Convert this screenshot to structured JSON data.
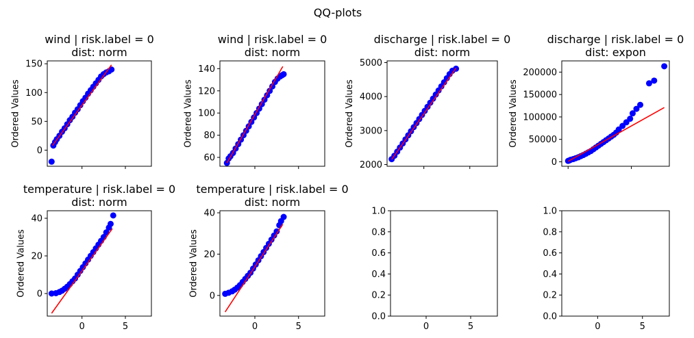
{
  "figure": {
    "suptitle": "QQ-plots"
  },
  "colors": {
    "points": "#0000ff",
    "fit_line": "#ff0000"
  },
  "chart_data": [
    {
      "type": "scatter",
      "title_line1": "wind | risk.label = 0",
      "title_line2": "dist: norm",
      "xlabel": "",
      "ylabel": "Ordered Values",
      "xlim": [
        -4,
        8
      ],
      "ylim": [
        -28,
        155
      ],
      "yticks": [
        0,
        50,
        100,
        150
      ],
      "yticks_labels": [
        "0",
        "50",
        "100",
        "150"
      ],
      "xticks": [
        0,
        5
      ],
      "xticks_labels": [
        "",
        ""
      ],
      "points": [
        [
          -3.5,
          -20
        ],
        [
          -3.3,
          8
        ],
        [
          -3.1,
          14
        ],
        [
          -2.9,
          19
        ],
        [
          -2.6,
          25
        ],
        [
          -2.3,
          32
        ],
        [
          -2.0,
          38
        ],
        [
          -1.7,
          45
        ],
        [
          -1.4,
          52
        ],
        [
          -1.1,
          58
        ],
        [
          -0.8,
          65
        ],
        [
          -0.5,
          71
        ],
        [
          -0.2,
          78
        ],
        [
          0.1,
          85
        ],
        [
          0.4,
          91
        ],
        [
          0.7,
          98
        ],
        [
          1.0,
          104
        ],
        [
          1.3,
          110
        ],
        [
          1.6,
          116
        ],
        [
          1.9,
          122
        ],
        [
          2.2,
          128
        ],
        [
          2.5,
          132
        ],
        [
          2.8,
          135
        ],
        [
          3.1,
          137
        ],
        [
          3.4,
          140
        ]
      ],
      "fit_line": [
        [
          -3.4,
          8
        ],
        [
          3.4,
          148
        ]
      ]
    },
    {
      "type": "scatter",
      "title_line1": "wind | risk.label = 0",
      "title_line2": "dist: norm",
      "xlabel": "",
      "ylabel": "Ordered Values",
      "xlim": [
        -4,
        8
      ],
      "ylim": [
        52,
        147
      ],
      "yticks": [
        60,
        80,
        100,
        120,
        140
      ],
      "yticks_labels": [
        "60",
        "80",
        "100",
        "120",
        "140"
      ],
      "xticks": [
        0,
        5
      ],
      "xticks_labels": [
        "",
        ""
      ],
      "points": [
        [
          -3.2,
          55
        ],
        [
          -3.0,
          59
        ],
        [
          -2.8,
          61
        ],
        [
          -2.5,
          64
        ],
        [
          -2.2,
          68
        ],
        [
          -1.9,
          72
        ],
        [
          -1.6,
          76
        ],
        [
          -1.3,
          80
        ],
        [
          -1.0,
          84
        ],
        [
          -0.7,
          88
        ],
        [
          -0.4,
          92
        ],
        [
          -0.1,
          96
        ],
        [
          0.2,
          100
        ],
        [
          0.5,
          104
        ],
        [
          0.8,
          108
        ],
        [
          1.1,
          112
        ],
        [
          1.4,
          116
        ],
        [
          1.7,
          120
        ],
        [
          2.0,
          124
        ],
        [
          2.3,
          128
        ],
        [
          2.6,
          131
        ],
        [
          2.9,
          133
        ],
        [
          3.1,
          134
        ],
        [
          3.3,
          135
        ]
      ],
      "fit_line": [
        [
          -3.2,
          55
        ],
        [
          3.2,
          142
        ]
      ]
    },
    {
      "type": "scatter",
      "title_line1": "discharge | risk.label = 0",
      "title_line2": "dist: norm",
      "xlabel": "",
      "ylabel": "Ordered Values",
      "xlim": [
        -4,
        8
      ],
      "ylim": [
        1950,
        5050
      ],
      "yticks": [
        2000,
        3000,
        4000,
        5000
      ],
      "yticks_labels": [
        "2000",
        "3000",
        "4000",
        "5000"
      ],
      "xticks": [
        0,
        5
      ],
      "xticks_labels": [
        "",
        ""
      ],
      "points": [
        [
          -3.5,
          2160
        ],
        [
          -3.2,
          2260
        ],
        [
          -2.9,
          2380
        ],
        [
          -2.6,
          2500
        ],
        [
          -2.3,
          2620
        ],
        [
          -2.0,
          2740
        ],
        [
          -1.7,
          2860
        ],
        [
          -1.4,
          2980
        ],
        [
          -1.1,
          3100
        ],
        [
          -0.8,
          3220
        ],
        [
          -0.5,
          3340
        ],
        [
          -0.2,
          3460
        ],
        [
          0.1,
          3580
        ],
        [
          0.4,
          3700
        ],
        [
          0.7,
          3820
        ],
        [
          1.0,
          3940
        ],
        [
          1.3,
          4060
        ],
        [
          1.6,
          4180
        ],
        [
          1.9,
          4300
        ],
        [
          2.2,
          4420
        ],
        [
          2.5,
          4540
        ],
        [
          2.8,
          4660
        ],
        [
          3.1,
          4760
        ],
        [
          3.5,
          4820
        ]
      ],
      "fit_line": [
        [
          -3.5,
          2150
        ],
        [
          3.5,
          4840
        ]
      ]
    },
    {
      "type": "scatter",
      "title_line1": "discharge | risk.label = 0",
      "title_line2": "dist: expon",
      "xlabel": "",
      "ylabel": "Ordered Values",
      "xlim": [
        -0.5,
        8
      ],
      "ylim": [
        -10000,
        225000
      ],
      "yticks": [
        0,
        50000,
        100000,
        150000,
        200000
      ],
      "yticks_labels": [
        "0",
        "50000",
        "100000",
        "150000",
        "200000"
      ],
      "xticks": [
        0,
        5
      ],
      "xticks_labels": [
        "",
        ""
      ],
      "points": [
        [
          0.0,
          2000
        ],
        [
          0.1,
          3000
        ],
        [
          0.2,
          4500
        ],
        [
          0.4,
          6000
        ],
        [
          0.6,
          8000
        ],
        [
          0.8,
          10000
        ],
        [
          1.0,
          12500
        ],
        [
          1.2,
          15000
        ],
        [
          1.4,
          18000
        ],
        [
          1.6,
          21000
        ],
        [
          1.8,
          24000
        ],
        [
          2.0,
          28000
        ],
        [
          2.2,
          32000
        ],
        [
          2.4,
          36000
        ],
        [
          2.6,
          40000
        ],
        [
          2.8,
          44000
        ],
        [
          3.0,
          48000
        ],
        [
          3.2,
          52000
        ],
        [
          3.4,
          56000
        ],
        [
          3.6,
          60000
        ],
        [
          3.8,
          65000
        ],
        [
          4.0,
          72000
        ],
        [
          4.3,
          80000
        ],
        [
          4.6,
          88000
        ],
        [
          4.9,
          96000
        ],
        [
          5.1,
          108000
        ],
        [
          5.4,
          118000
        ],
        [
          5.7,
          127000
        ],
        [
          6.4,
          175000
        ],
        [
          6.8,
          181000
        ],
        [
          7.6,
          213000
        ]
      ],
      "fit_line": [
        [
          0.0,
          1000
        ],
        [
          7.6,
          121000
        ]
      ]
    },
    {
      "type": "scatter",
      "title_line1": "temperature | risk.label = 0",
      "title_line2": "dist: norm",
      "xlabel": "",
      "ylabel": "Ordered Values",
      "xlim": [
        -4,
        8
      ],
      "ylim": [
        -12,
        44
      ],
      "yticks": [
        0,
        20,
        40
      ],
      "yticks_labels": [
        "0",
        "20",
        "40"
      ],
      "xticks": [
        0,
        5
      ],
      "xticks_labels": [
        "0",
        "5"
      ],
      "points": [
        [
          -3.5,
          0
        ],
        [
          -3.0,
          0.2
        ],
        [
          -2.6,
          0.8
        ],
        [
          -2.3,
          1.5
        ],
        [
          -2.0,
          2.5
        ],
        [
          -1.7,
          3.6
        ],
        [
          -1.4,
          5.0
        ],
        [
          -1.1,
          6.5
        ],
        [
          -0.8,
          8.0
        ],
        [
          -0.5,
          10
        ],
        [
          -0.2,
          12
        ],
        [
          0.1,
          14
        ],
        [
          0.4,
          16
        ],
        [
          0.7,
          18
        ],
        [
          1.0,
          20
        ],
        [
          1.3,
          22
        ],
        [
          1.6,
          24
        ],
        [
          1.9,
          26
        ],
        [
          2.2,
          28
        ],
        [
          2.5,
          30
        ],
        [
          2.8,
          32.5
        ],
        [
          3.1,
          35
        ],
        [
          3.3,
          37
        ],
        [
          3.6,
          41.5
        ]
      ],
      "fit_line": [
        [
          -3.5,
          -10.5
        ],
        [
          3.5,
          34.5
        ]
      ]
    },
    {
      "type": "scatter",
      "title_line1": "temperature | risk.label = 0",
      "title_line2": "dist: norm",
      "xlabel": "",
      "ylabel": "Ordered Values",
      "xlim": [
        -4,
        8
      ],
      "ylim": [
        -10,
        41
      ],
      "yticks": [
        0,
        20,
        40
      ],
      "yticks_labels": [
        "0",
        "20",
        "40"
      ],
      "xticks": [
        0,
        5
      ],
      "xticks_labels": [
        "0",
        "5"
      ],
      "points": [
        [
          -3.4,
          0.8
        ],
        [
          -3.0,
          1.3
        ],
        [
          -2.6,
          2.0
        ],
        [
          -2.3,
          2.8
        ],
        [
          -2.0,
          3.8
        ],
        [
          -1.7,
          5.0
        ],
        [
          -1.4,
          6.5
        ],
        [
          -1.1,
          8.0
        ],
        [
          -0.8,
          9.5
        ],
        [
          -0.5,
          11
        ],
        [
          -0.2,
          13
        ],
        [
          0.1,
          15
        ],
        [
          0.4,
          17
        ],
        [
          0.7,
          19
        ],
        [
          1.0,
          21
        ],
        [
          1.3,
          23
        ],
        [
          1.6,
          25
        ],
        [
          1.9,
          27
        ],
        [
          2.2,
          29
        ],
        [
          2.5,
          31
        ],
        [
          2.8,
          34
        ],
        [
          3.0,
          36
        ],
        [
          3.3,
          38
        ]
      ],
      "fit_line": [
        [
          -3.4,
          -8
        ],
        [
          3.2,
          34.5
        ]
      ]
    },
    {
      "type": "scatter",
      "title_line1": "",
      "title_line2": "",
      "xlabel": "",
      "ylabel": "",
      "xlim": [
        -4,
        8
      ],
      "ylim": [
        0,
        1
      ],
      "yticks": [
        0,
        0.2,
        0.4,
        0.6,
        0.8,
        1.0
      ],
      "yticks_labels": [
        "0.0",
        "0.2",
        "0.4",
        "0.6",
        "0.8",
        "1.0"
      ],
      "xticks": [
        0,
        5
      ],
      "xticks_labels": [
        "0",
        "5"
      ],
      "points": [],
      "fit_line": []
    },
    {
      "type": "scatter",
      "title_line1": "",
      "title_line2": "",
      "xlabel": "",
      "ylabel": "",
      "xlim": [
        -4,
        8
      ],
      "ylim": [
        0,
        1
      ],
      "yticks": [
        0,
        0.2,
        0.4,
        0.6,
        0.8,
        1.0
      ],
      "yticks_labels": [
        "0.0",
        "0.2",
        "0.4",
        "0.6",
        "0.8",
        "1.0"
      ],
      "xticks": [
        0,
        5
      ],
      "xticks_labels": [
        "0",
        "5"
      ],
      "points": [],
      "fit_line": []
    }
  ]
}
